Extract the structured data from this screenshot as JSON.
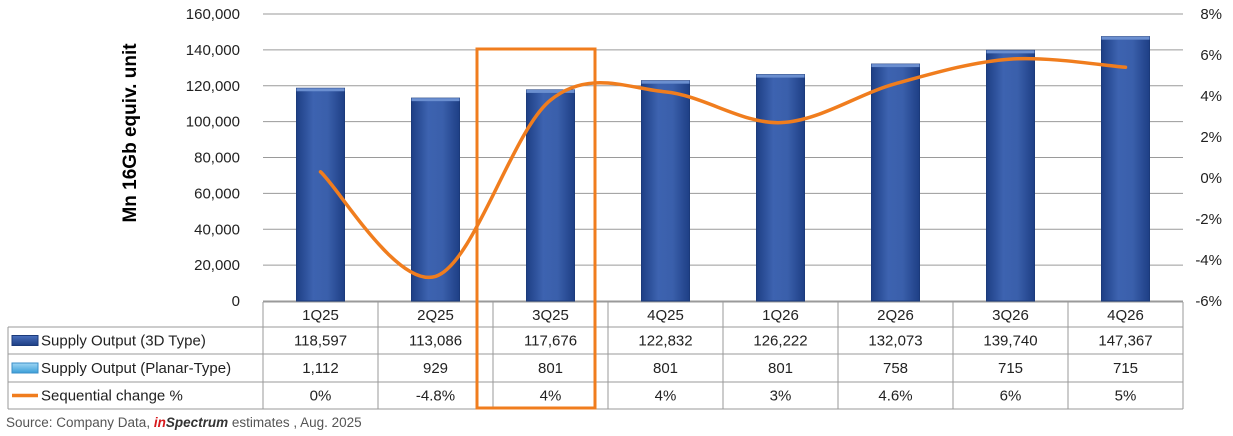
{
  "chart_data": {
    "type": "bar",
    "ylabel": "Mn 16Gb equiv. unit",
    "ylim": [
      0,
      160000
    ],
    "y_ticks": [
      "160,000",
      "140,000",
      "120,000",
      "100,000",
      "80,000",
      "60,000",
      "40,000",
      "20,000",
      "0"
    ],
    "y2lim": [
      -6,
      8
    ],
    "y2_ticks": [
      "8%",
      "6%",
      "4%",
      "2%",
      "0%",
      "-2%",
      "-4%",
      "-6%"
    ],
    "categories": [
      "1Q25",
      "2Q25",
      "3Q25",
      "4Q25",
      "1Q26",
      "2Q26",
      "3Q26",
      "4Q26"
    ],
    "series": [
      {
        "name": "Supply Output (3D Type)",
        "type": "bar",
        "values": [
          118597,
          113086,
          117676,
          122832,
          126222,
          132073,
          139740,
          147367
        ],
        "labels": [
          "118,597",
          "113,086",
          "117,676",
          "122,832",
          "126,222",
          "132,073",
          "139,740",
          "147,367"
        ],
        "color": "#2f55a0"
      },
      {
        "name": "Supply Output (Planar-Type)",
        "type": "bar",
        "values": [
          1112,
          929,
          801,
          801,
          801,
          758,
          715,
          715
        ],
        "labels": [
          "1,112",
          "929",
          "801",
          "801",
          "801",
          "758",
          "715",
          "715"
        ],
        "color": "#5bb7e8"
      },
      {
        "name": "Sequential change %",
        "type": "line",
        "axis": "right",
        "values": [
          0.3,
          -4.8,
          3.8,
          4.2,
          2.7,
          4.6,
          5.8,
          5.4
        ],
        "labels": [
          "0%",
          "-4.8%",
          "4%",
          "4%",
          "3%",
          "4.6%",
          "6%",
          "5%"
        ],
        "color": "#f07d1e"
      }
    ],
    "highlight_category": "3Q25",
    "grid": true,
    "legend": "data-table"
  },
  "colors": {
    "highlight_box": "#f07d1e",
    "grid": "#9a9a9a"
  },
  "source": {
    "prefix": "Source: Company Data, ",
    "brand_in": "in",
    "brand_rest": "Spectrum",
    "suffix": " estimates , Aug. 2025"
  }
}
